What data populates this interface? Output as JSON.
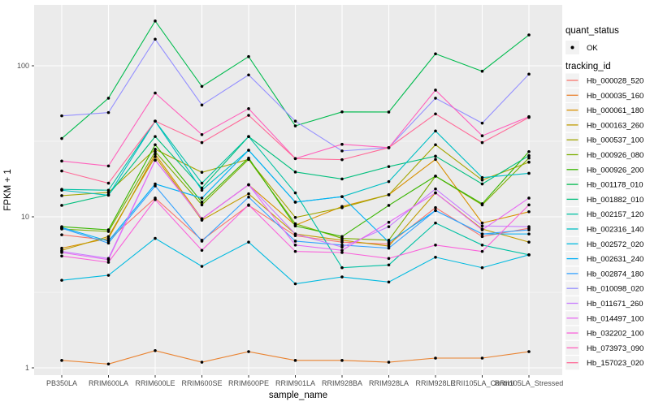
{
  "figure": {
    "background": "#FFFFFF",
    "panel_background": "#EBEBEB",
    "grid_color": "#FFFFFF",
    "point_color": "#000000",
    "tick_label_color": "#4D4D4D",
    "axis_title_color": "#000000",
    "legend_key_background": "#F2F2F2"
  },
  "legend": {
    "quant_status": {
      "title": "quant_status",
      "items": [
        {
          "label": "OK",
          "marker": "black-point"
        }
      ]
    },
    "tracking_id": {
      "title": "tracking_id"
    }
  },
  "chart_data": {
    "type": "line",
    "title": "",
    "xlabel": "sample_name",
    "ylabel": "FPKM + 1",
    "y_scale": "log10",
    "ylim": [
      1,
      250
    ],
    "y_ticks": [
      1,
      10,
      100
    ],
    "y_minor_ticks": [
      3.1623,
      31.623
    ],
    "grid": true,
    "markers": "point",
    "legend_position": "right",
    "categories": [
      "PB350LA",
      "RRIM600LA",
      "RRIM600LE",
      "RRIM600SE",
      "RRIM600PE",
      "RRIM901LA",
      "RRIM928BA",
      "RRIM928LA",
      "RRIM928LE",
      "RRII105LA_Control",
      "RRII105LA_Stressed"
    ],
    "series": [
      {
        "name": "Hb_000028_520",
        "color": "#F8766D",
        "values": [
          7.6,
          7.0,
          13.3,
          7.0,
          11.9,
          7.5,
          6.8,
          6.6,
          11.5,
          7.4,
          8.4
        ]
      },
      {
        "name": "Hb_000035_160",
        "color": "#EA8331",
        "values": [
          1.12,
          1.06,
          1.3,
          1.09,
          1.28,
          1.12,
          1.12,
          1.09,
          1.16,
          1.16,
          1.28
        ]
      },
      {
        "name": "Hb_000061_180",
        "color": "#D89000",
        "values": [
          6.2,
          7.2,
          26.0,
          9.7,
          16.3,
          8.8,
          11.7,
          14.0,
          24.0,
          9.1,
          10.8
        ]
      },
      {
        "name": "Hb_000163_260",
        "color": "#C09B00",
        "values": [
          6.0,
          7.4,
          25.0,
          9.5,
          14.2,
          7.7,
          7.0,
          6.4,
          14.4,
          8.3,
          6.8
        ]
      },
      {
        "name": "Hb_000537_100",
        "color": "#A3A500",
        "values": [
          13.8,
          14.5,
          28.0,
          19.7,
          24.0,
          9.9,
          11.5,
          14.0,
          30.0,
          17.5,
          23.0
        ]
      },
      {
        "name": "Hb_000926_080",
        "color": "#7CAE00",
        "values": [
          8.3,
          8.0,
          27.0,
          12.0,
          24.0,
          9.0,
          7.2,
          7.0,
          18.6,
          12.0,
          24.5
        ]
      },
      {
        "name": "Hb_000926_200",
        "color": "#39B600",
        "values": [
          8.6,
          8.2,
          30.0,
          12.5,
          24.5,
          8.7,
          7.4,
          11.9,
          18.6,
          12.2,
          27.0
        ]
      },
      {
        "name": "Hb_001178_010",
        "color": "#00BB4E",
        "values": [
          33.0,
          61.0,
          198.0,
          73.0,
          115.0,
          40.0,
          49.5,
          49.4,
          120.0,
          92.0,
          160.0
        ]
      },
      {
        "name": "Hb_001882_010",
        "color": "#00BF7D",
        "values": [
          11.9,
          14.0,
          34.0,
          15.5,
          34.0,
          19.8,
          17.8,
          21.5,
          25.2,
          16.5,
          25.4
        ]
      },
      {
        "name": "Hb_002157_120",
        "color": "#00C1A3",
        "values": [
          15.2,
          15.0,
          43.0,
          16.7,
          34.0,
          14.4,
          4.6,
          4.8,
          9.1,
          6.5,
          5.6
        ]
      },
      {
        "name": "Hb_002316_140",
        "color": "#00BFC4",
        "values": [
          15.0,
          13.9,
          43.0,
          15.0,
          27.6,
          12.5,
          13.6,
          17.1,
          37.0,
          18.2,
          19.4
        ]
      },
      {
        "name": "Hb_002572_020",
        "color": "#00BAE0",
        "values": [
          3.8,
          4.1,
          7.2,
          4.7,
          6.8,
          3.6,
          4.0,
          3.7,
          5.4,
          4.6,
          5.6
        ]
      },
      {
        "name": "Hb_002631_240",
        "color": "#00B0F6",
        "values": [
          8.5,
          6.9,
          16.5,
          13.3,
          27.6,
          12.5,
          13.6,
          6.8,
          11.0,
          7.7,
          7.7
        ]
      },
      {
        "name": "Hb_002874_180",
        "color": "#35A2FF",
        "values": [
          8.4,
          6.7,
          16.0,
          6.9,
          13.5,
          6.9,
          6.5,
          6.2,
          11.0,
          7.7,
          8.2
        ]
      },
      {
        "name": "Hb_010098_020",
        "color": "#9590FF",
        "values": [
          46.6,
          49.0,
          150.0,
          55.0,
          87.0,
          43.0,
          27.3,
          28.7,
          61.0,
          41.7,
          88.0
        ]
      },
      {
        "name": "Hb_011671_260",
        "color": "#C77CFF",
        "values": [
          5.9,
          5.3,
          23.7,
          9.7,
          16.3,
          7.7,
          6.3,
          8.6,
          15.3,
          8.7,
          8.6
        ]
      },
      {
        "name": "Hb_014497_100",
        "color": "#E76BF3",
        "values": [
          5.8,
          5.2,
          23.7,
          9.7,
          16.3,
          6.5,
          6.0,
          9.2,
          14.4,
          8.2,
          13.3
        ]
      },
      {
        "name": "Hb_032202_100",
        "color": "#FA62DB",
        "values": [
          5.5,
          5.0,
          13.0,
          6.0,
          12.0,
          5.9,
          5.8,
          5.3,
          6.5,
          5.9,
          12.0
        ]
      },
      {
        "name": "Hb_073973_090",
        "color": "#FF62BC",
        "values": [
          23.4,
          21.7,
          66.0,
          35.0,
          52.0,
          24.3,
          30.2,
          28.7,
          69.0,
          34.4,
          46.0
        ]
      },
      {
        "name": "Hb_157023_020",
        "color": "#FF6A98",
        "values": [
          20.1,
          16.7,
          43.0,
          31.0,
          47.0,
          24.3,
          23.9,
          28.7,
          48.0,
          31.0,
          45.5
        ]
      }
    ]
  }
}
